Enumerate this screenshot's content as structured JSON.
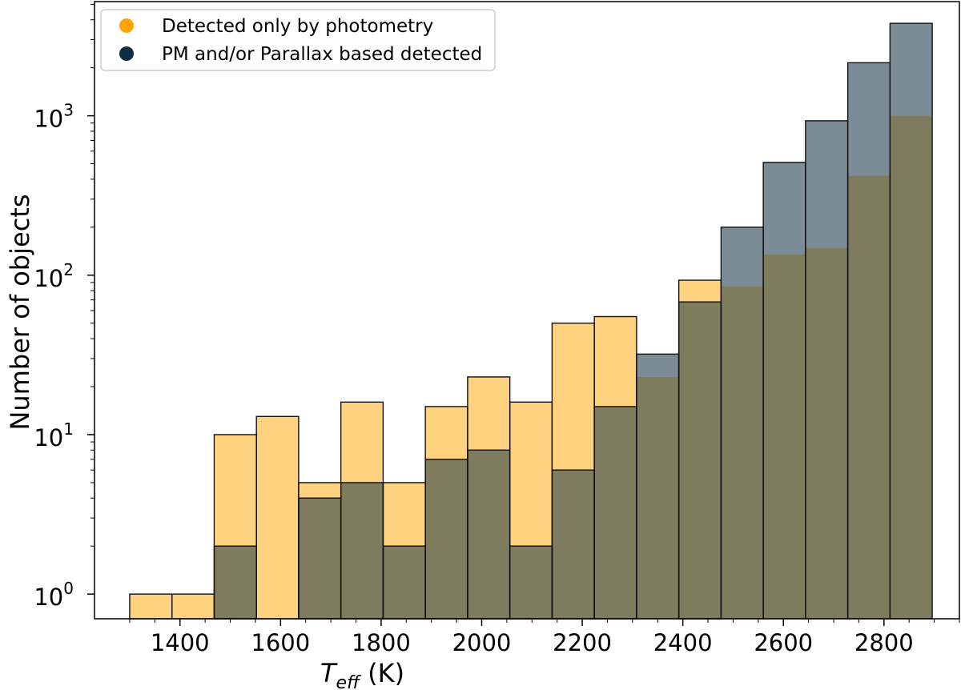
{
  "colors": {
    "photometry": "#ffa500",
    "pm_parallax": "#0b2e45",
    "photometry_bar": "#ffd27f",
    "pm_bar": "#7c8c97",
    "overlap_bar": "#7f7b5e",
    "edge": "#111111"
  },
  "chart_data": {
    "type": "bar",
    "subtype": "overlaid-histogram",
    "xlabel": {
      "main": "T",
      "sub": "eff",
      "unit": " (K)"
    },
    "ylabel": "Number of objects",
    "yscale": "log",
    "xlim": [
      1230,
      2950
    ],
    "ylim": [
      0.7,
      5200
    ],
    "xticks": [
      "1400",
      "1600",
      "1800",
      "2000",
      "2200",
      "2400",
      "2600",
      "2800"
    ],
    "yticks": [
      {
        "value": 1,
        "label": "10",
        "exp": "0"
      },
      {
        "value": 10,
        "label": "10",
        "exp": "1"
      },
      {
        "value": 100,
        "label": "10",
        "exp": "2"
      },
      {
        "value": 1000,
        "label": "10",
        "exp": "3"
      }
    ],
    "legend": {
      "position": "upper-left",
      "entries": [
        "Detected only by photometry",
        "PM and/or Parallax based detected"
      ]
    },
    "bin_edges": [
      1300,
      1384,
      1468,
      1552,
      1636,
      1720,
      1804,
      1888,
      1972,
      2056,
      2140,
      2224,
      2308,
      2392,
      2476,
      2560,
      2644,
      2728,
      2812,
      2896
    ],
    "series": [
      {
        "name": "Detected only by photometry",
        "values": [
          1,
          1,
          10,
          13,
          5,
          16,
          5,
          15,
          23,
          16,
          50,
          55,
          0,
          93,
          0,
          0,
          0,
          0,
          0
        ]
      },
      {
        "name": "PM and/or Parallax based detected",
        "values": [
          0,
          0,
          2,
          0,
          4,
          5,
          2,
          7,
          8,
          2,
          6,
          15,
          32,
          68,
          200,
          510,
          930,
          2150,
          3800
        ]
      }
    ],
    "overlap_values": [
      0,
      0,
      2,
      0,
      4,
      5,
      2,
      7,
      8,
      2,
      6,
      15,
      23,
      68,
      85,
      135,
      148,
      420,
      1000
    ]
  }
}
